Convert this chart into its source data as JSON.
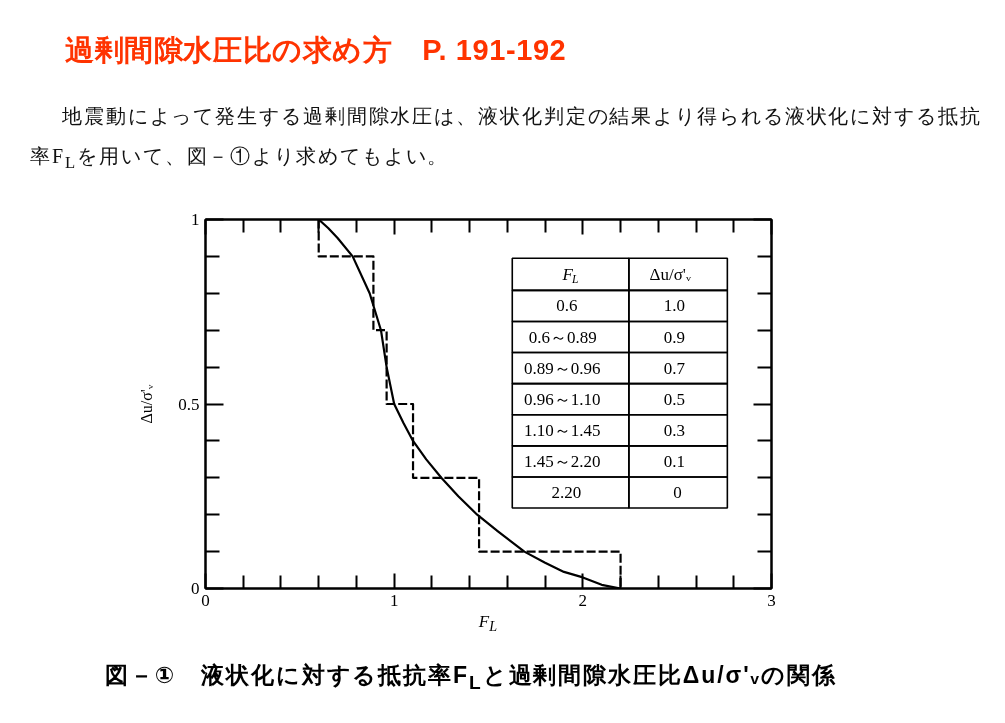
{
  "chart_data": {
    "type": "line",
    "title": "過剰間隙水圧比の求め方　P. 191-192",
    "subtitle": "地震動によって発生する過剰間隙水圧は、液状化判定の結果より得られる液状化に対する抵抗率F$_{L}$を用いて、図－①より求めてもよい。",
    "xlabel": "F$_{L}$",
    "ylabel": "Δu/σ'ᵥ",
    "xlim": [
      0,
      3
    ],
    "ylim": [
      0,
      1
    ],
    "xticks": [
      0,
      {
        "value": 0.2,
        "label": null
      },
      {
        "value": 0.4,
        "label": null
      },
      {
        "value": 0.6,
        "label": null
      },
      {
        "value": 0.8,
        "label": null
      },
      1,
      {
        "value": 1.2,
        "label": null
      },
      {
        "value": 1.4,
        "label": null
      },
      {
        "value": 1.6,
        "label": null
      },
      {
        "value": 1.8,
        "label": null
      },
      2,
      {
        "value": 2.2,
        "label": null
      },
      {
        "value": 2.4,
        "label": null
      },
      {
        "value": 2.6,
        "label": null
      },
      {
        "value": 2.8,
        "label": null
      },
      3
    ],
    "yticks": [
      0,
      {
        "value": 0.1,
        "label": null
      },
      {
        "value": 0.2,
        "label": null
      },
      {
        "value": 0.3,
        "label": null
      },
      {
        "value": 0.4,
        "label": null
      },
      0.5,
      {
        "value": 0.6,
        "label": null
      },
      {
        "value": 0.7,
        "label": null
      },
      {
        "value": 0.8,
        "label": null
      },
      {
        "value": 0.9,
        "label": null
      },
      1
    ],
    "grid": false,
    "series": [
      {
        "color": "#000000",
        "line_style": "solid",
        "x": [
          0.6,
          0.65,
          0.7,
          0.78,
          0.87,
          0.93,
          0.96,
          1.0,
          1.05,
          1.1,
          1.17,
          1.25,
          1.34,
          1.44,
          1.55,
          1.69,
          1.8,
          1.9,
          2.0,
          2.1,
          2.2
        ],
        "values": [
          1.0,
          0.977,
          0.95,
          0.9,
          0.8,
          0.7,
          0.6,
          0.5,
          0.448,
          0.4,
          0.35,
          0.3,
          0.25,
          0.2,
          0.155,
          0.1,
          0.07,
          0.045,
          0.03,
          0.01,
          0
        ]
      },
      {
        "type": "step",
        "color": "#000000",
        "line_style": "dashed",
        "x": [
          0.6,
          0.6,
          0.89,
          0.96,
          1.1,
          1.45,
          2.2
        ],
        "values": [
          1.0,
          0.9,
          0.7,
          0.5,
          0.3,
          0.1,
          0
        ]
      }
    ],
    "annotations": [
      "図－①　液状化に対する抵抗率F$_{L}$と過剰間隙水圧比Δu/σ'ᵥの関係",
      "F$_{L}$",
      "Δu/σ'ᵥ",
      "0.6",
      "1.0",
      "0.6～0.89",
      "0.9",
      "0.89～0.96",
      "0.7",
      "0.96～1.10",
      "0.5",
      "1.10～1.45",
      "0.3",
      "1.45～2.20",
      "0.1",
      "2.20",
      "0"
    ]
  }
}
